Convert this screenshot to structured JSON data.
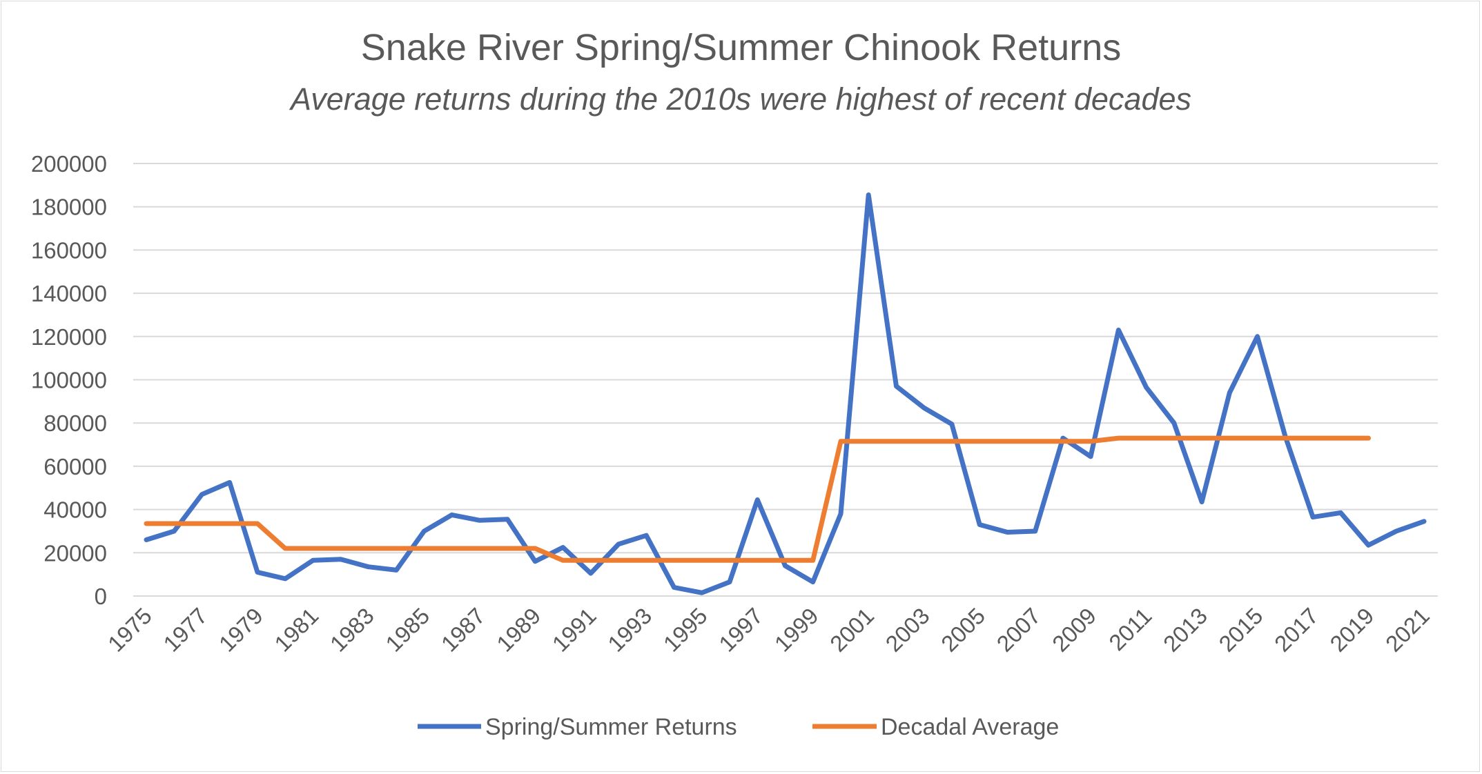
{
  "chart_data": {
    "type": "line",
    "title": "Snake River Spring/Summer Chinook Returns",
    "subtitle": "Average returns during the 2010s were highest of recent decades",
    "x": [
      1975,
      1976,
      1977,
      1978,
      1979,
      1980,
      1981,
      1982,
      1983,
      1984,
      1985,
      1986,
      1987,
      1988,
      1989,
      1990,
      1991,
      1992,
      1993,
      1994,
      1995,
      1996,
      1997,
      1998,
      1999,
      2000,
      2001,
      2002,
      2003,
      2004,
      2005,
      2006,
      2007,
      2008,
      2009,
      2010,
      2011,
      2012,
      2013,
      2014,
      2015,
      2016,
      2017,
      2018,
      2019,
      2020,
      2021
    ],
    "x_tick_labels": [
      "1975",
      "1977",
      "1979",
      "1981",
      "1983",
      "1985",
      "1987",
      "1989",
      "1991",
      "1993",
      "1995",
      "1997",
      "1999",
      "2001",
      "2003",
      "2005",
      "2007",
      "2009",
      "2011",
      "2013",
      "2015",
      "2017",
      "2019",
      "2021"
    ],
    "ylim": [
      0,
      200000
    ],
    "y_ticks": [
      0,
      20000,
      40000,
      60000,
      80000,
      100000,
      120000,
      140000,
      160000,
      180000,
      200000
    ],
    "grid": true,
    "legend_position": "bottom",
    "series": [
      {
        "name": "Spring/Summer Returns",
        "color": "#4472c4",
        "values": [
          26000,
          30000,
          47000,
          52500,
          11000,
          8000,
          16500,
          17000,
          13500,
          12000,
          30000,
          37500,
          35000,
          35500,
          16000,
          22500,
          10500,
          24000,
          28000,
          4000,
          1500,
          6500,
          44500,
          14000,
          6500,
          38000,
          185500,
          97000,
          87000,
          79500,
          33000,
          29500,
          30000,
          73000,
          64500,
          123000,
          96500,
          80000,
          43500,
          94000,
          120000,
          74000,
          36500,
          38500,
          23500,
          30000,
          34500
        ]
      },
      {
        "name": "Decadal Average",
        "color": "#ed7d31",
        "values": [
          33500,
          33500,
          33500,
          33500,
          33500,
          22000,
          22000,
          22000,
          22000,
          22000,
          22000,
          22000,
          22000,
          22000,
          22000,
          16500,
          16500,
          16500,
          16500,
          16500,
          16500,
          16500,
          16500,
          16500,
          16500,
          71500,
          71500,
          71500,
          71500,
          71500,
          71500,
          71500,
          71500,
          71500,
          71500,
          73000,
          73000,
          73000,
          73000,
          73000,
          73000,
          73000,
          73000,
          73000,
          73000,
          null,
          null
        ]
      }
    ]
  }
}
